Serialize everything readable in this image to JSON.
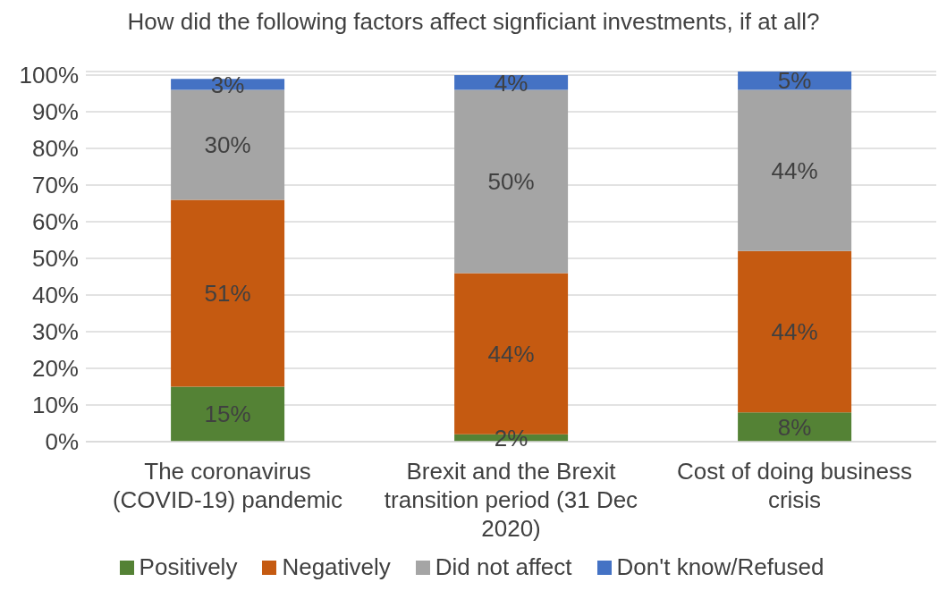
{
  "chart_data": {
    "type": "bar",
    "title": "How did the following factors affect signficiant investments, if at all?",
    "categories": [
      "The coronavirus (COVID-19) pandemic",
      "Brexit and the Brexit transition period (31 Dec 2020)",
      "Cost of doing business crisis"
    ],
    "series": [
      {
        "name": "Positively",
        "color": "#548235",
        "values": [
          15,
          2,
          8
        ],
        "value_labels": [
          "15%",
          "2%",
          "8%"
        ]
      },
      {
        "name": "Negatively",
        "color": "#c55a11",
        "values": [
          51,
          44,
          44
        ],
        "value_labels": [
          "51%",
          "44%",
          "44%"
        ]
      },
      {
        "name": "Did not affect",
        "color": "#a5a5a5",
        "values": [
          30,
          50,
          44
        ],
        "value_labels": [
          "30%",
          "50%",
          "44%"
        ]
      },
      {
        "name": "Don't know/Refused",
        "color": "#4472c4",
        "values": [
          3,
          4,
          5
        ],
        "value_labels": [
          "3%",
          "4%",
          "5%"
        ]
      }
    ],
    "stacked": true,
    "ylim": [
      0,
      101
    ],
    "yticks": [
      {
        "value": 0,
        "label": "0%"
      },
      {
        "value": 10,
        "label": "10%"
      },
      {
        "value": 20,
        "label": "20%"
      },
      {
        "value": 30,
        "label": "30%"
      },
      {
        "value": 40,
        "label": "40%"
      },
      {
        "value": 50,
        "label": "50%"
      },
      {
        "value": 60,
        "label": "60%"
      },
      {
        "value": 70,
        "label": "70%"
      },
      {
        "value": 80,
        "label": "80%"
      },
      {
        "value": 90,
        "label": "90%"
      },
      {
        "value": 100,
        "label": "100%"
      }
    ],
    "grid": "y",
    "legend": "bottom"
  }
}
